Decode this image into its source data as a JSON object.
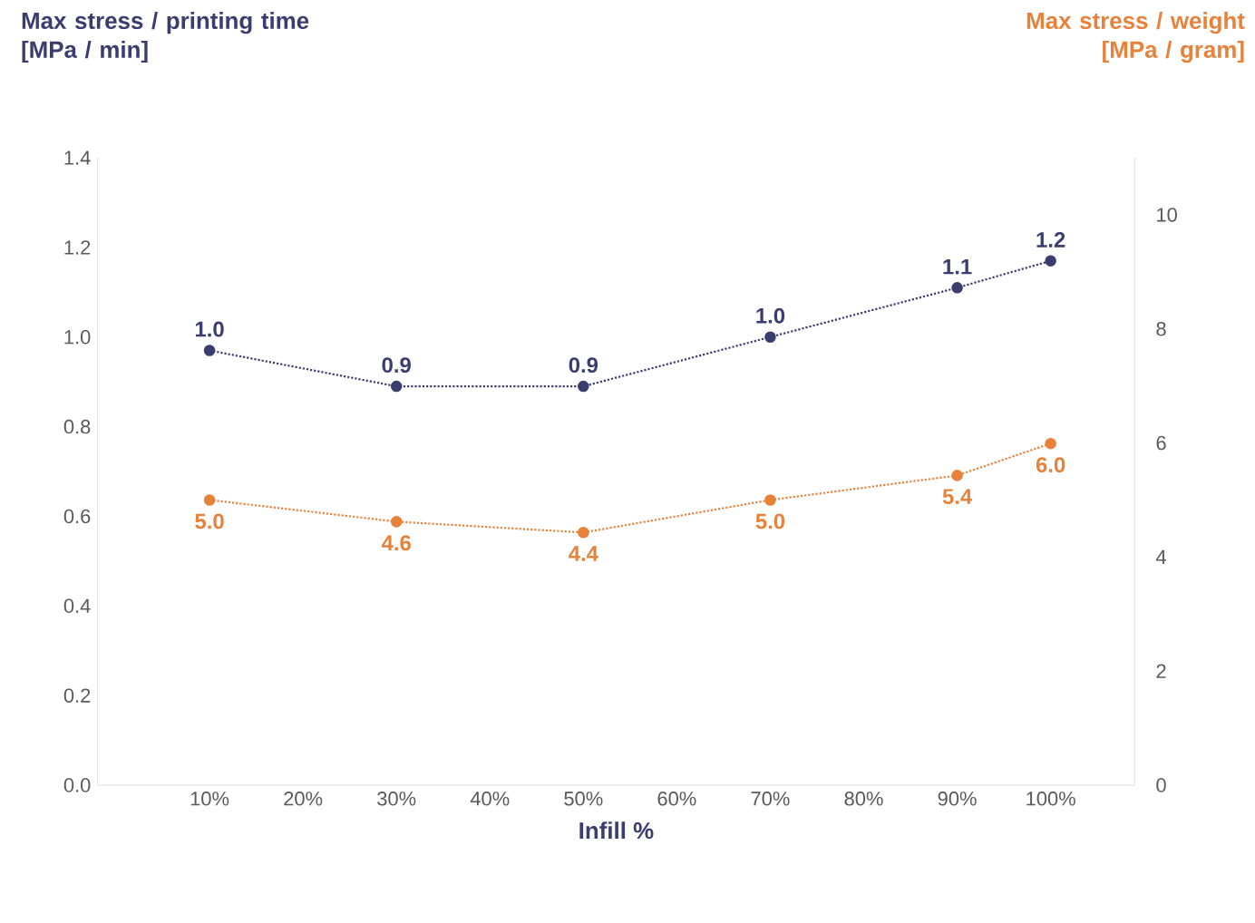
{
  "chart_data": {
    "type": "line",
    "xlabel": "Infill %",
    "ylabel": "Max stress / printing time [MPa / min]",
    "y2label": "Max stress / weight [MPa / gram]",
    "categories": [
      null,
      "10%",
      "20%",
      "30%",
      "40%",
      "50%",
      "60%",
      "70%",
      "80%",
      "90%",
      "100%"
    ],
    "series": [
      {
        "name": null,
        "color": "#3b3d6e",
        "values": [
          null,
          0.97,
          null,
          0.89,
          null,
          0.89,
          null,
          1.0,
          null,
          1.11,
          1.17
        ],
        "value_labels": [
          null,
          "1.0",
          null,
          "0.9",
          null,
          "0.9",
          null,
          "1.0",
          null,
          "1.1",
          "1.2"
        ]
      },
      {
        "name": null,
        "color": "#e8823a",
        "axis": "y2",
        "values": [
          null,
          5.0,
          null,
          4.62,
          null,
          4.43,
          null,
          5.0,
          null,
          5.43,
          5.99
        ],
        "value_labels": [
          null,
          "5.0",
          null,
          "4.6",
          null,
          "4.4",
          null,
          "5.0",
          null,
          "5.4",
          "6.0"
        ]
      }
    ],
    "ylim": [
      0,
      1.4
    ],
    "yticks": [
      {
        "value": 0,
        "label": "0.0"
      },
      {
        "value": 0.2,
        "label": "0.2"
      },
      {
        "value": 0.4,
        "label": "0.4"
      },
      {
        "value": 0.6,
        "label": "0.6"
      },
      {
        "value": 0.8,
        "label": "0.8"
      },
      {
        "value": 1.0,
        "label": "1.0"
      },
      {
        "value": 1.2,
        "label": "1.2"
      },
      {
        "value": 1.4,
        "label": "1.4"
      }
    ],
    "y2lim": [
      0,
      11
    ],
    "y2ticks": [
      0,
      2,
      4,
      6,
      8,
      10
    ],
    "marker": "circle",
    "line_style": "dotted"
  }
}
